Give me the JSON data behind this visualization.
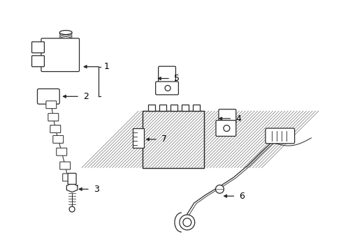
{
  "bg_color": "#ffffff",
  "line_color": "#2a2a2a",
  "label_color": "#000000",
  "figsize": [
    4.89,
    3.6
  ],
  "dpi": 100,
  "parts": {
    "1_label": "1",
    "2_label": "2",
    "3_label": "3",
    "4_label": "4",
    "5_label": "5",
    "6_label": "6",
    "7_label": "7"
  }
}
